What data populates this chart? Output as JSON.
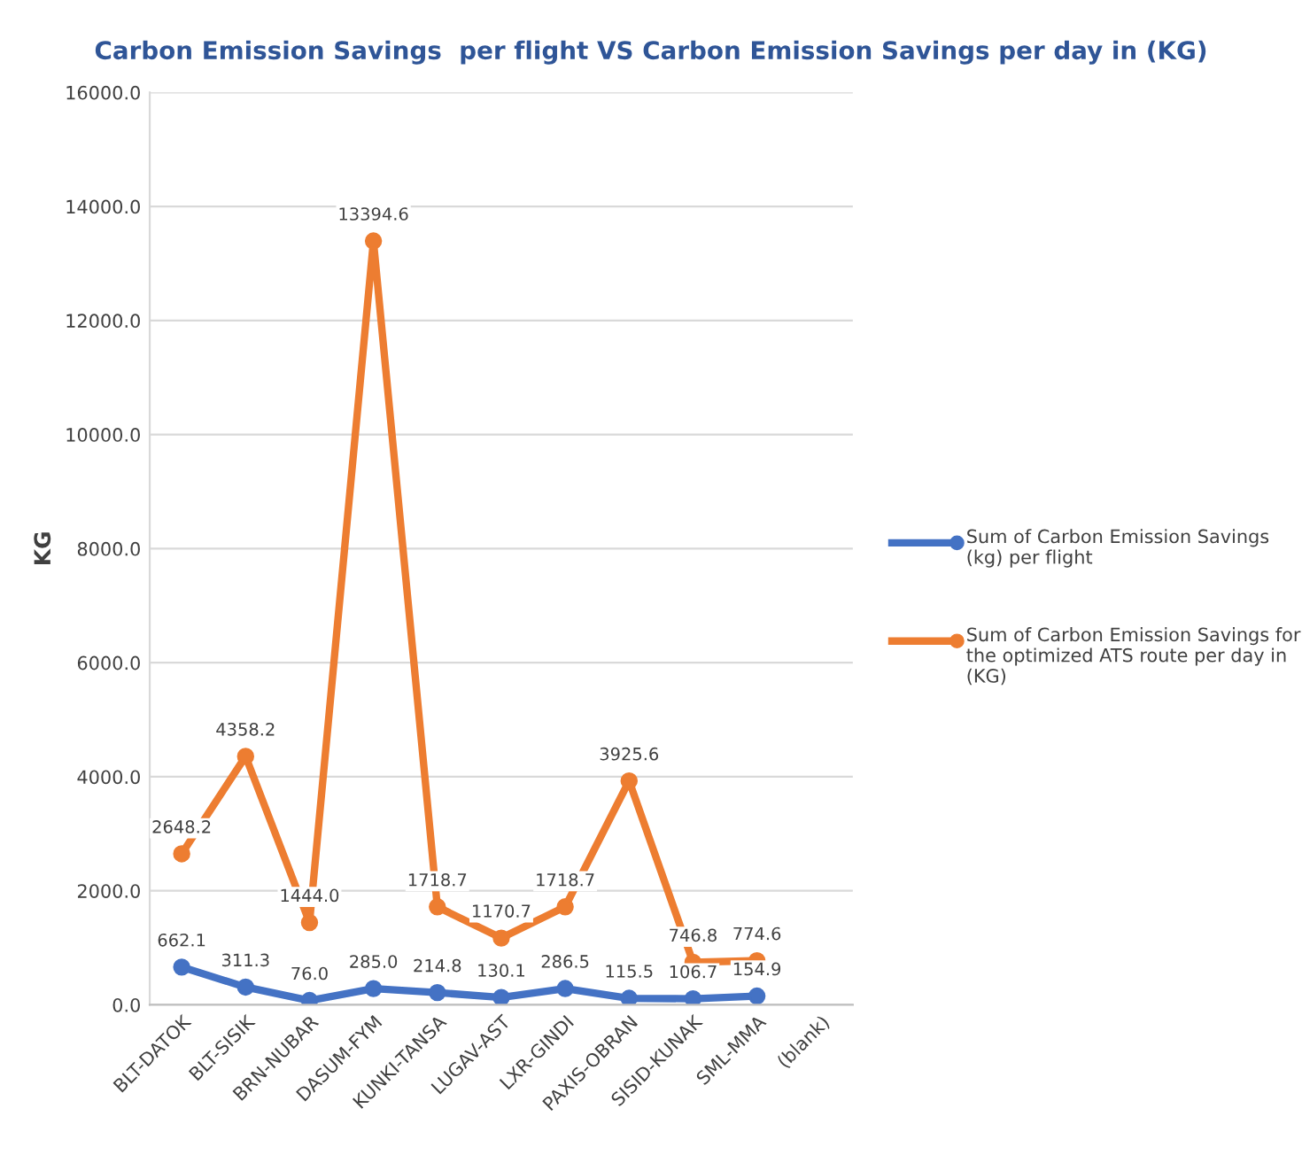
{
  "chart_data": {
    "type": "line",
    "title": "Carbon Emission Savings  per flight VS Carbon Emission Savings per day in (KG)",
    "ylabel": "KG",
    "categories": [
      "BLT-DATOK",
      "BLT-SISIK",
      "BRN-NUBAR",
      "DASUM-FYM",
      "KUNKI-TANSA",
      "LUGAV-AST",
      "LXR-GINDI",
      "PAXIS-OBRAN",
      "SISID-KUNAK",
      "SML-MMA",
      "(blank)"
    ],
    "series": [
      {
        "name": "Sum of Carbon Emission Savings (kg) per flight",
        "color": "#4472c4",
        "values": [
          662.1,
          311.3,
          76,
          285,
          214.8,
          130.1,
          286.5,
          115.5,
          106.7,
          154.9,
          null
        ],
        "value_labels": [
          "662.1",
          "311.3",
          "76.0",
          "285.0",
          "214.8",
          "130.1",
          "286.5",
          "115.5",
          "106.7",
          "154.9",
          null
        ]
      },
      {
        "name": "Sum of Carbon Emission Savings for the optimized ATS route per day in (KG)",
        "color": "#ed7d31",
        "values": [
          2648.2,
          4358.2,
          1444,
          13394.6,
          1718.7,
          1170.7,
          1718.7,
          3925.6,
          746.8,
          774.6,
          null
        ],
        "value_labels": [
          "2648.2",
          "4358.2",
          "1444.0",
          "13394.6",
          "1718.7",
          "1170.7",
          "1718.7",
          "3925.6",
          "746.8",
          "774.6",
          null
        ]
      }
    ],
    "ylim": [
      0,
      16000
    ],
    "yticks": [
      {
        "value": 0,
        "label": "0.0"
      },
      {
        "value": 2000,
        "label": "2000.0"
      },
      {
        "value": 4000,
        "label": "4000.0"
      },
      {
        "value": 6000,
        "label": "6000.0"
      },
      {
        "value": 8000,
        "label": "8000.0"
      },
      {
        "value": 10000,
        "label": "10000.0"
      },
      {
        "value": 12000,
        "label": "12000.0"
      },
      {
        "value": 14000,
        "label": "14000.0"
      },
      {
        "value": 16000,
        "label": "16000.0"
      }
    ],
    "grid": "y",
    "legend": "right",
    "marker": "circle",
    "line_style": "solid"
  }
}
